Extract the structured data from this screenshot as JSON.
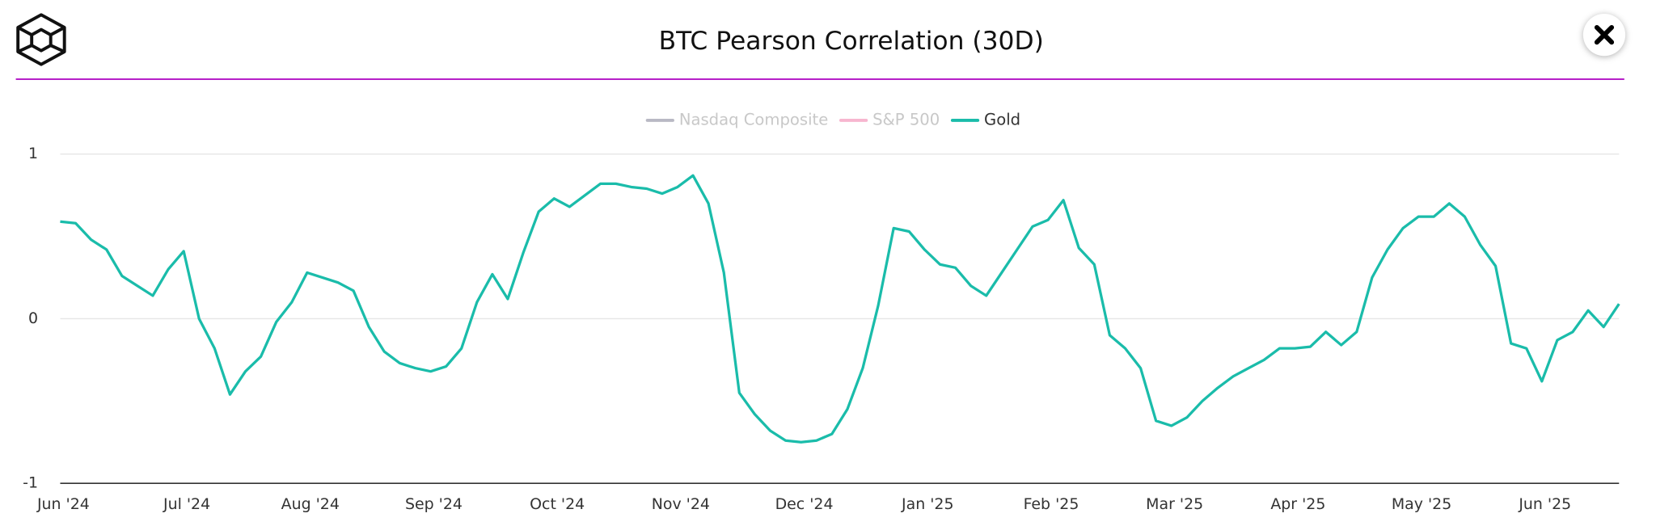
{
  "chart_data": {
    "type": "line",
    "title": "BTC Pearson Correlation (30D)",
    "categories": [
      "Jun '24",
      null,
      null,
      null,
      null,
      null,
      null,
      null,
      "Jul '24",
      null,
      null,
      null,
      null,
      null,
      null,
      null,
      "Aug '24",
      null,
      null,
      null,
      null,
      null,
      null,
      null,
      "Sep '24",
      null,
      null,
      null,
      null,
      null,
      null,
      null,
      "Oct '24",
      null,
      null,
      null,
      null,
      null,
      null,
      null,
      "Nov '24",
      null,
      null,
      null,
      null,
      null,
      null,
      null,
      "Dec '24",
      null,
      null,
      null,
      null,
      null,
      null,
      null,
      "Jan '25",
      null,
      null,
      null,
      null,
      null,
      null,
      null,
      "Feb '25",
      null,
      null,
      null,
      null,
      null,
      null,
      null,
      "Mar '25",
      null,
      null,
      null,
      null,
      null,
      null,
      null,
      "Apr '25",
      null,
      null,
      null,
      null,
      null,
      null,
      null,
      "May '25",
      null,
      null,
      null,
      null,
      null,
      null,
      null,
      "Jun '25",
      null,
      null,
      null,
      null,
      null
    ],
    "series": [
      {
        "name": "Nasdaq Composite",
        "color": "#b9b9c4",
        "visible": false
      },
      {
        "name": "S&P 500",
        "color": "#f7b6cf",
        "visible": false
      },
      {
        "name": "Gold",
        "color": "#1abcaa",
        "visible": true,
        "values": [
          0.59,
          0.58,
          0.48,
          0.42,
          0.26,
          0.2,
          0.14,
          0.3,
          0.41,
          0.0,
          -0.18,
          -0.46,
          -0.32,
          -0.23,
          -0.02,
          0.1,
          0.28,
          0.25,
          0.22,
          0.17,
          -0.05,
          -0.2,
          -0.27,
          -0.3,
          -0.32,
          -0.29,
          -0.18,
          0.1,
          0.27,
          0.12,
          0.4,
          0.65,
          0.73,
          0.68,
          0.75,
          0.82,
          0.82,
          0.8,
          0.79,
          0.76,
          0.8,
          0.87,
          0.7,
          0.28,
          -0.45,
          -0.58,
          -0.68,
          -0.74,
          -0.75,
          -0.74,
          -0.7,
          -0.55,
          -0.3,
          0.08,
          0.55,
          0.53,
          0.42,
          0.33,
          0.31,
          0.2,
          0.14,
          0.28,
          0.42,
          0.56,
          0.6,
          0.72,
          0.43,
          0.33,
          -0.1,
          -0.18,
          -0.3,
          -0.62,
          -0.65,
          -0.6,
          -0.5,
          -0.42,
          -0.35,
          -0.3,
          -0.25,
          -0.18,
          -0.18,
          -0.17,
          -0.08,
          -0.16,
          -0.08,
          0.25,
          0.42,
          0.55,
          0.62,
          0.62,
          0.7,
          0.62,
          0.45,
          0.32,
          -0.15,
          -0.18,
          -0.38,
          -0.13,
          -0.08,
          0.05,
          -0.05,
          0.09
        ]
      }
    ],
    "ylim": [
      -1,
      1
    ],
    "yticks": [
      -1,
      0,
      1
    ],
    "grid": true,
    "legend": "top"
  }
}
